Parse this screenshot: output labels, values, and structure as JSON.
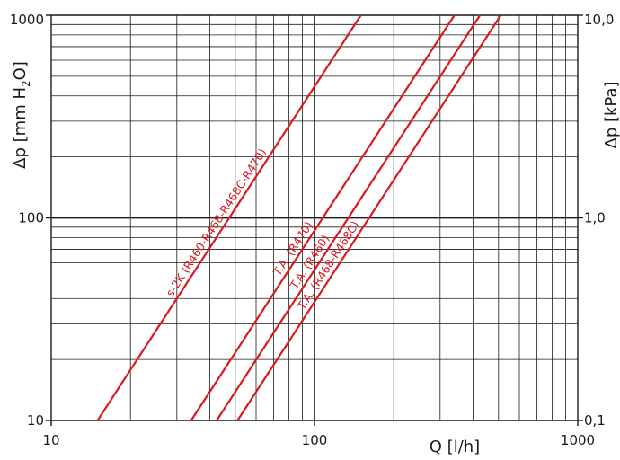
{
  "chart_data": {
    "type": "line",
    "title": "",
    "x_scale": "log",
    "y_scale": "log",
    "xlim": [
      10,
      1000
    ],
    "ylim": [
      10,
      1000
    ],
    "grid": true,
    "xlabel": "Q [l/h]",
    "ylabel": "Δp [mm H2O]",
    "ylabel_main": "Δp [mm H",
    "ylabel_sub": "2",
    "ylabel_tail": "O]",
    "y2label": "Δp [kPa]",
    "x_ticks": [
      {
        "value": 10,
        "label": "10"
      },
      {
        "value": 100,
        "label": "100"
      },
      {
        "value": 1000,
        "label": "1000"
      }
    ],
    "y_ticks": [
      {
        "value": 10,
        "label": "10"
      },
      {
        "value": 100,
        "label": "100"
      },
      {
        "value": 1000,
        "label": "1000"
      }
    ],
    "y2_ticks": [
      {
        "value": 10,
        "label": "0,1"
      },
      {
        "value": 100,
        "label": "1,0"
      },
      {
        "value": 1000,
        "label": "10,0"
      }
    ],
    "line_color": "#d71920",
    "grid_color": "#1a1a1a",
    "series": [
      {
        "name": "s-2K (R460-R468-R468C-R470)",
        "x": [
          15,
          150
        ],
        "y": [
          10,
          1000
        ]
      },
      {
        "name": "T.A. (R470)",
        "x": [
          34,
          340
        ],
        "y": [
          10,
          1000
        ]
      },
      {
        "name": "T.A. (R460)",
        "x": [
          42.5,
          425
        ],
        "y": [
          10,
          1000
        ]
      },
      {
        "name": "T.A. (R468-R468C)",
        "x": [
          51,
          510
        ],
        "y": [
          10,
          1000
        ]
      }
    ],
    "label_positions_q": [
      45,
      88,
      102,
      120
    ]
  }
}
